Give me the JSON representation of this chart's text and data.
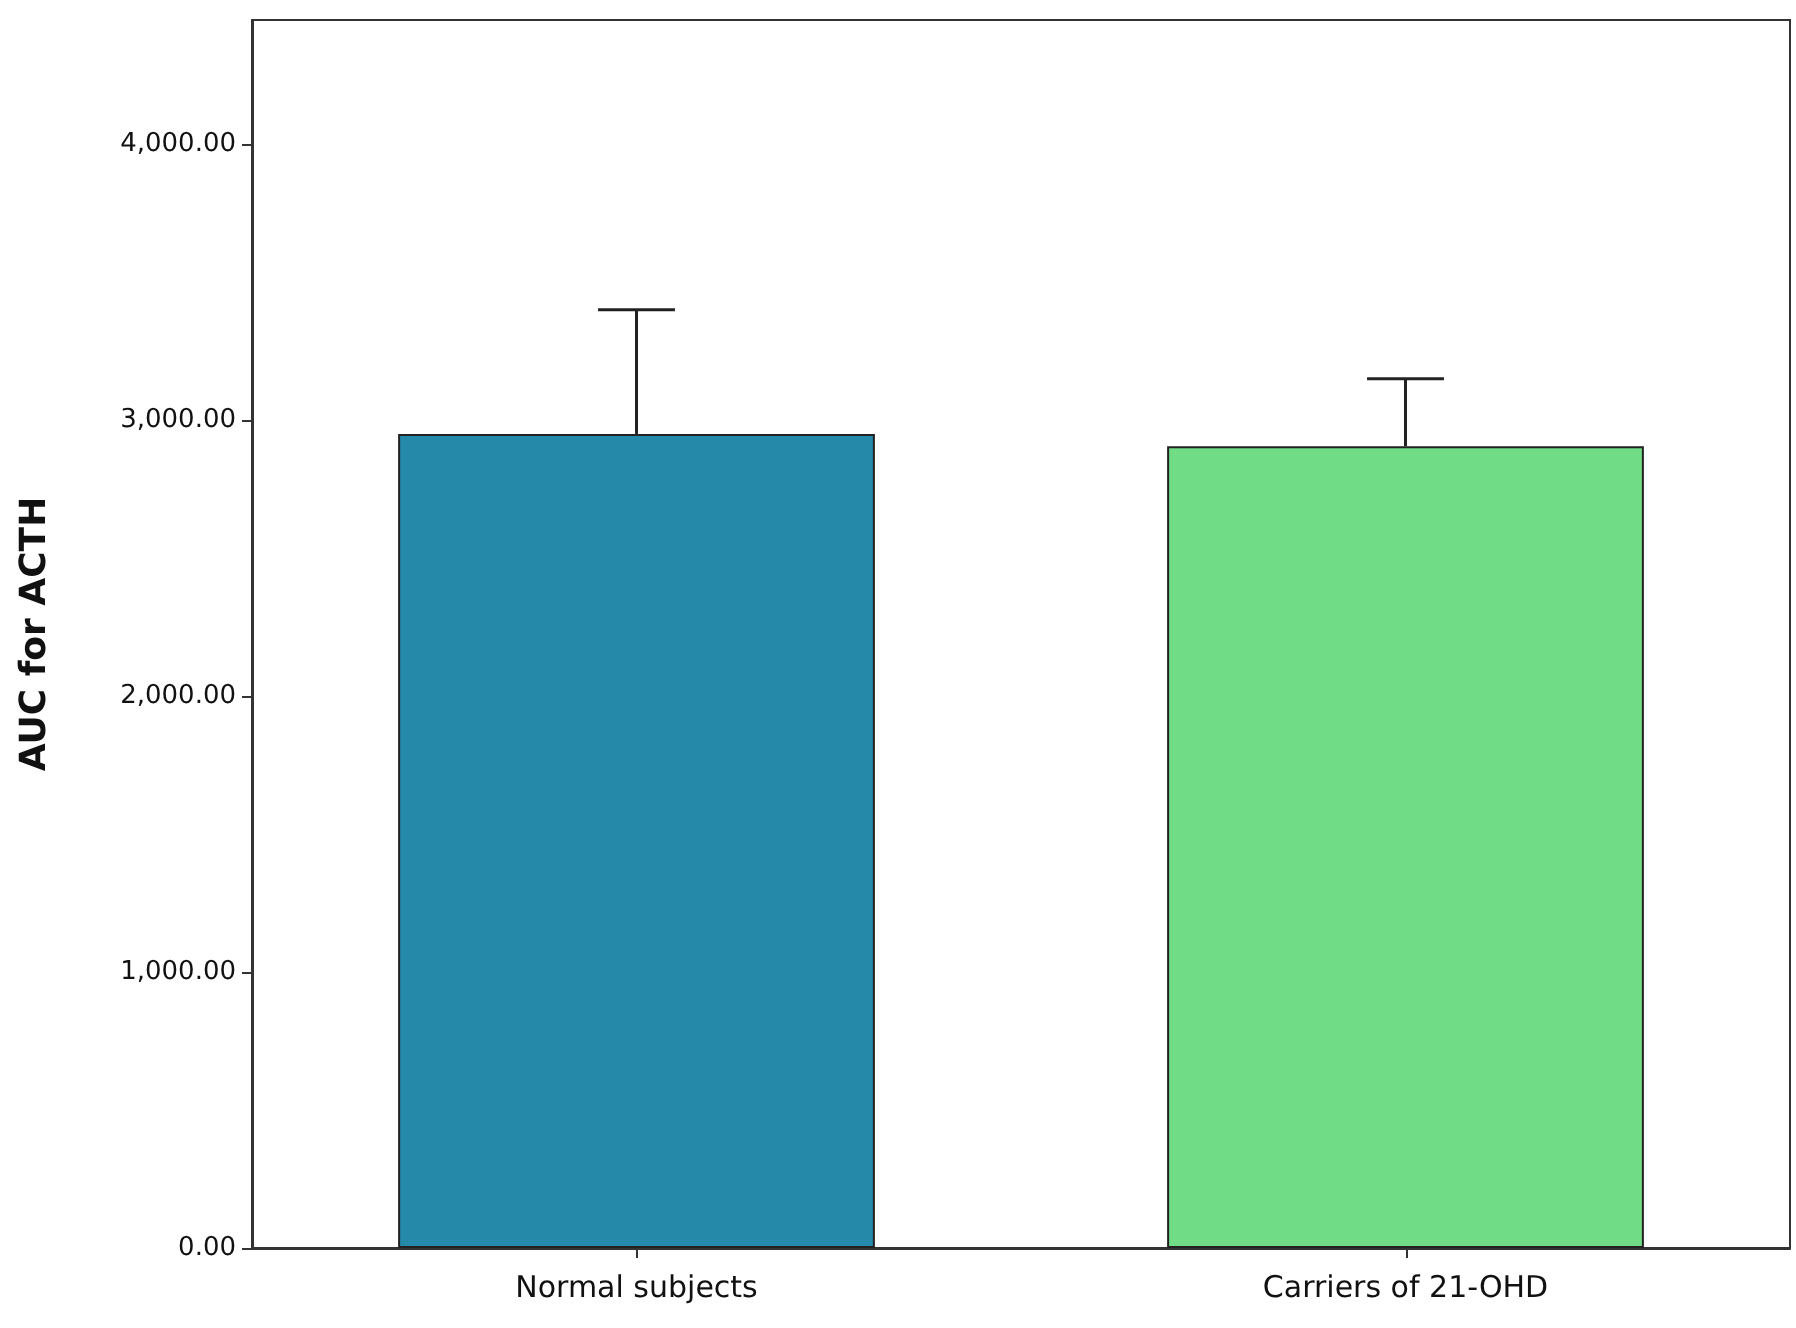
{
  "chart_data": {
    "type": "bar",
    "ylabel": "AUC for ACTH",
    "categories": [
      "Normal subjects",
      "Carriers of 21-OHD"
    ],
    "values": [
      2950,
      2905
    ],
    "colors": [
      "#2589aa",
      "#70dc86"
    ],
    "errors": [
      [
        2950,
        3400
      ],
      [
        2905,
        3150
      ]
    ],
    "ylim": [
      0,
      4450
    ],
    "yticks": [
      {
        "value": 0,
        "label": "0.00"
      },
      {
        "value": 1000,
        "label": "1,000.00"
      },
      {
        "value": 2000,
        "label": "2,000.00"
      },
      {
        "value": 3000,
        "label": "3,000.00"
      },
      {
        "value": 4000,
        "label": "4,000.00"
      }
    ],
    "grid": false
  }
}
